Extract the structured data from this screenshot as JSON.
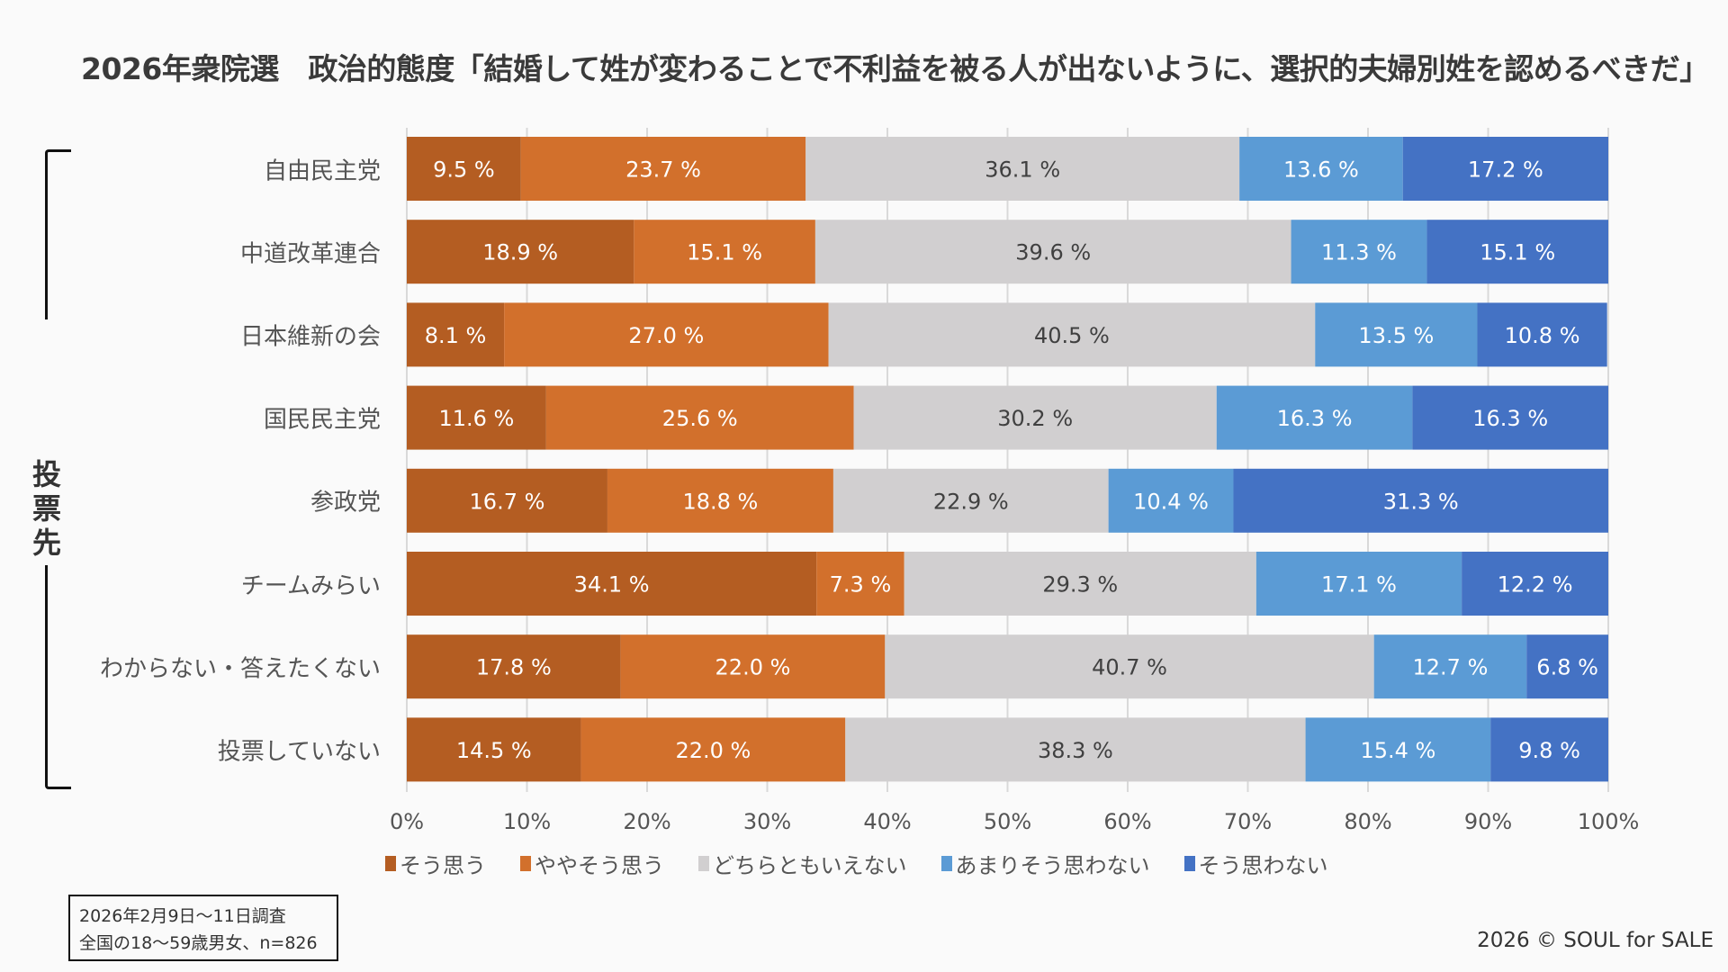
{
  "title": "2026年衆院選　政治的態度「結婚して姓が変わることで不利益を被る人が出ないように、選択的夫婦別姓を認めるべきだ」",
  "group_label": "投票先",
  "note": {
    "line1": "2026年2月9日〜11日調査",
    "line2": "全国の18〜59歳男女、n=826"
  },
  "copyright": "2026 © SOUL for SALE",
  "chart_data": {
    "type": "bar",
    "orientation": "horizontal",
    "stacked": "100%",
    "title": "2026年衆院選　政治的態度「結婚して姓が変わることで不利益を被る人が出ないように、選択的夫婦別姓を認めるべきだ」",
    "xlabel": "",
    "ylabel": "投票先",
    "xlim": [
      0,
      100
    ],
    "x_ticks": [
      "0%",
      "10%",
      "20%",
      "30%",
      "40%",
      "50%",
      "60%",
      "70%",
      "80%",
      "90%",
      "100%"
    ],
    "grid": true,
    "legend_position": "bottom",
    "categories": [
      "自由民主党",
      "中道改革連合",
      "日本維新の会",
      "国民民主党",
      "参政党",
      "チームみらい",
      "わからない・答えたくない",
      "投票していない"
    ],
    "series": [
      {
        "name": "そう思う",
        "color": "#b45d22",
        "label_color": "#ffffff",
        "values": [
          9.5,
          18.9,
          8.1,
          11.6,
          16.7,
          34.1,
          17.8,
          14.5
        ]
      },
      {
        "name": "ややそう思う",
        "color": "#d2702c",
        "label_color": "#ffffff",
        "values": [
          23.7,
          15.1,
          27.0,
          25.6,
          18.8,
          7.3,
          22.0,
          22.0
        ]
      },
      {
        "name": "どちらともいえない",
        "color": "#d1cfd0",
        "label_color": "#404040",
        "values": [
          36.1,
          39.6,
          40.5,
          30.2,
          22.9,
          29.3,
          40.7,
          38.3
        ]
      },
      {
        "name": "あまりそう思わない",
        "color": "#5b9bd5",
        "label_color": "#ffffff",
        "values": [
          13.6,
          11.3,
          13.5,
          16.3,
          10.4,
          17.1,
          12.7,
          15.4
        ]
      },
      {
        "name": "そう思わない",
        "color": "#4472c4",
        "label_color": "#ffffff",
        "values": [
          17.2,
          15.1,
          10.8,
          16.3,
          31.3,
          12.2,
          6.8,
          9.8
        ]
      }
    ]
  }
}
